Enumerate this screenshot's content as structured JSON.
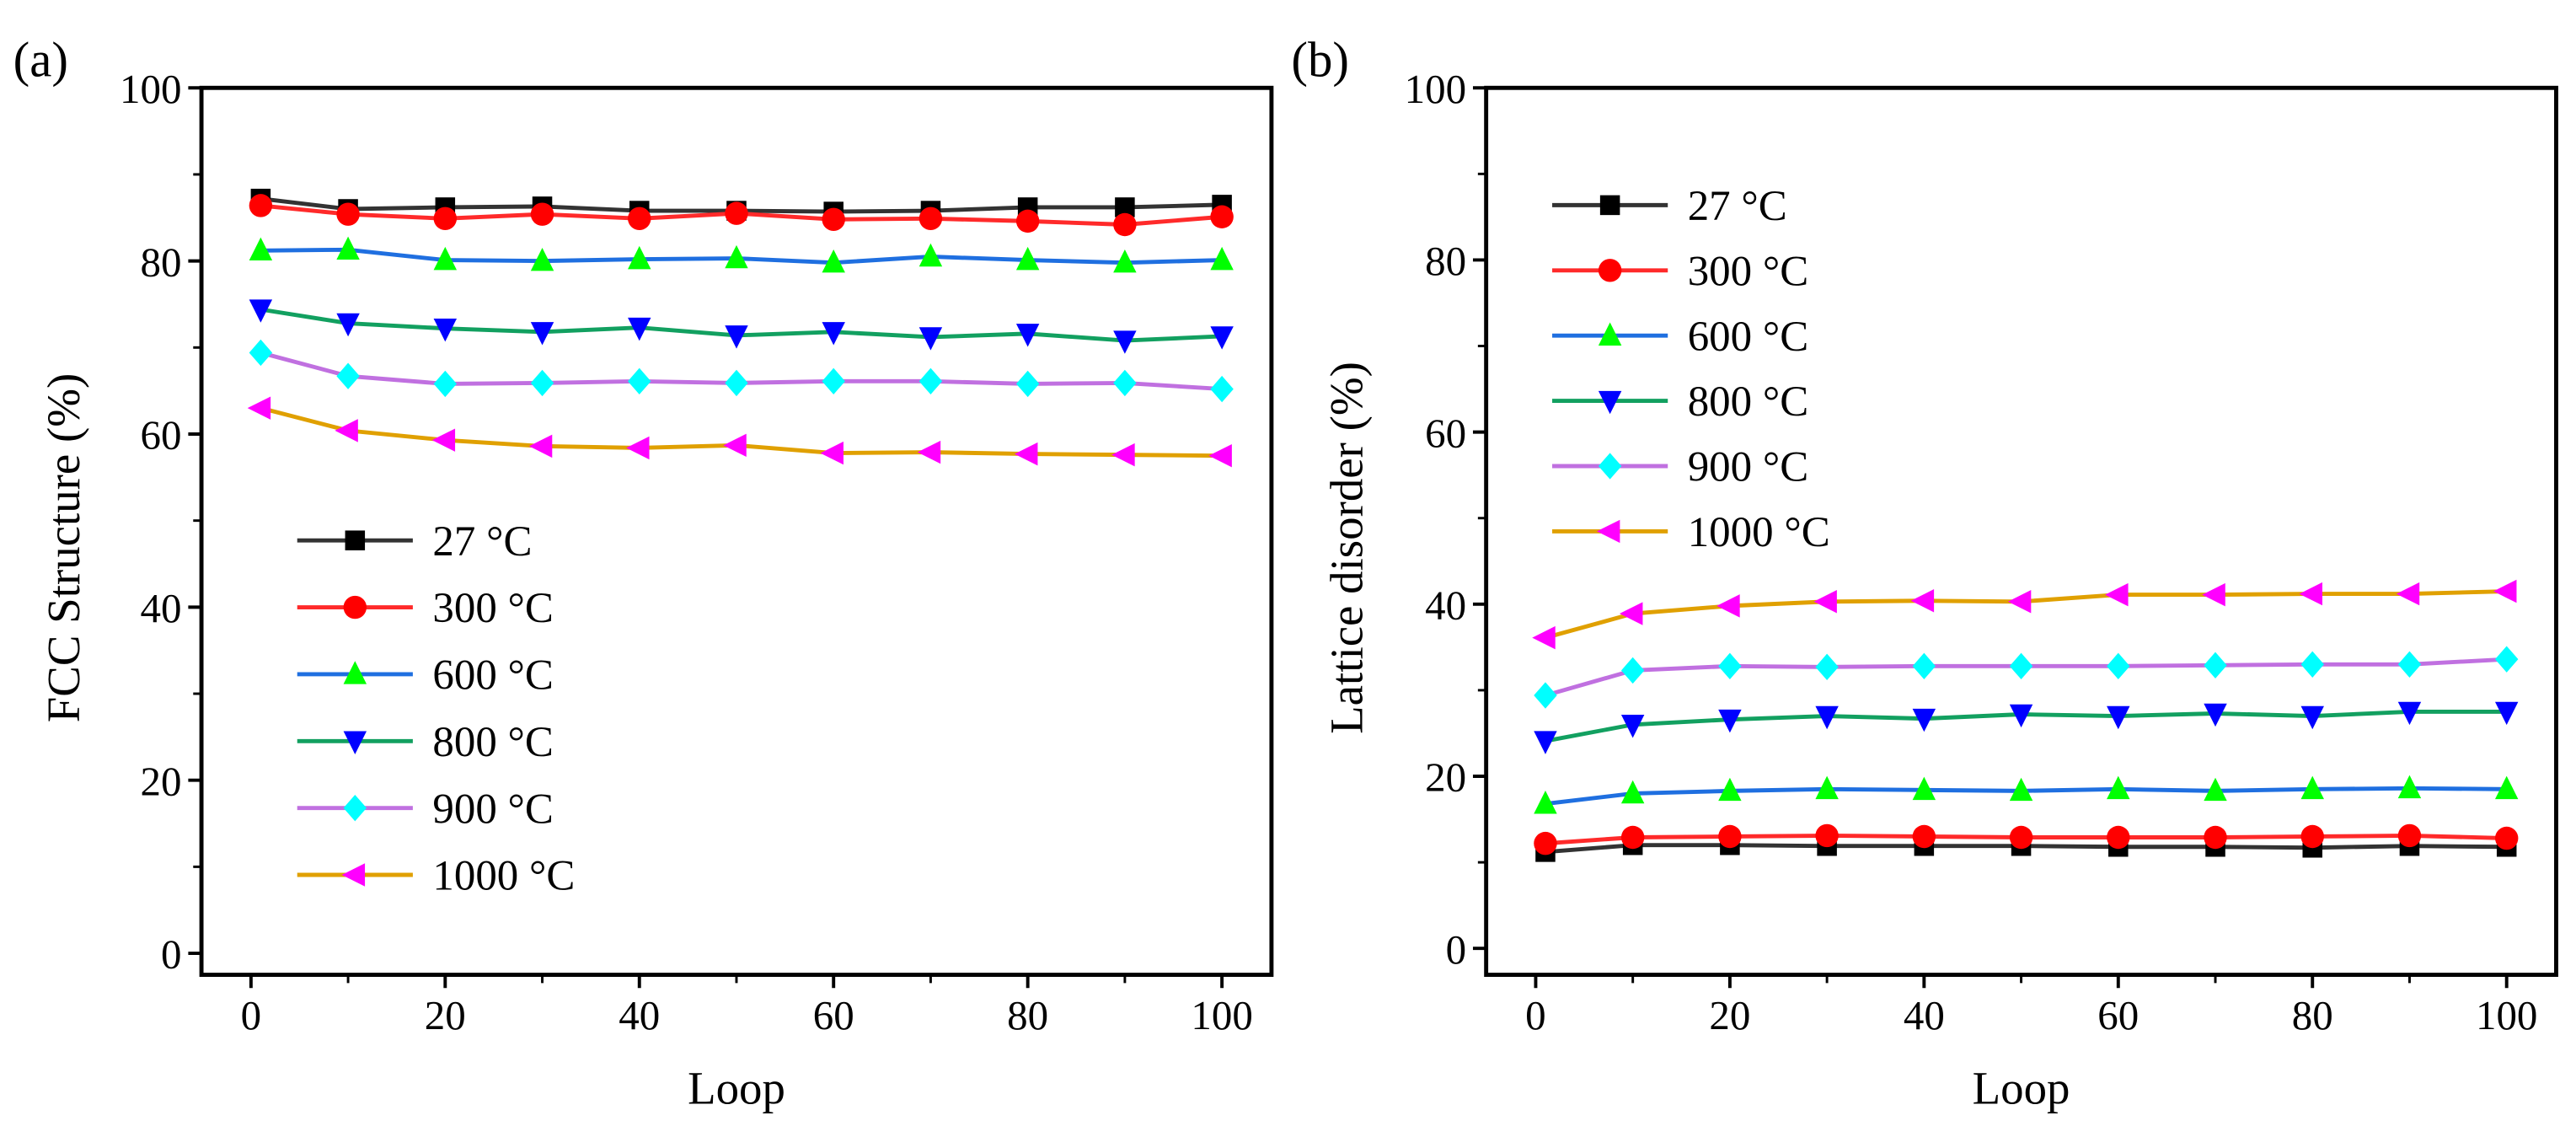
{
  "chart_data": [
    {
      "type": "line",
      "panel_label": "(a)",
      "xlabel": "Loop",
      "ylabel": "FCC Structure (%)",
      "xlim": [
        -4,
        105
      ],
      "ylim": [
        0,
        100
      ],
      "xticks": [
        0,
        20,
        40,
        60,
        80,
        100
      ],
      "yticks": [
        0,
        20,
        40,
        60,
        80,
        100
      ],
      "legend_placement": "lower-left",
      "x": [
        1,
        10,
        20,
        30,
        40,
        50,
        60,
        70,
        80,
        90,
        100
      ],
      "series": [
        {
          "name": "27 °C",
          "line_color": "#333333",
          "marker": "square",
          "marker_color": "#000000",
          "values": [
            87.2,
            86.0,
            86.2,
            86.3,
            85.8,
            85.8,
            85.7,
            85.8,
            86.2,
            86.2,
            86.5
          ]
        },
        {
          "name": "300 °C",
          "line_color": "#ff2a2a",
          "marker": "circle",
          "marker_color": "#ff0000",
          "values": [
            86.4,
            85.4,
            84.9,
            85.4,
            84.9,
            85.5,
            84.8,
            84.9,
            84.6,
            84.2,
            85.1
          ]
        },
        {
          "name": "600 °C",
          "line_color": "#1f6fe0",
          "marker": "triangle-up",
          "marker_color": "#00ff00",
          "values": [
            81.2,
            81.3,
            80.1,
            80.0,
            80.2,
            80.3,
            79.8,
            80.5,
            80.1,
            79.8,
            80.1
          ]
        },
        {
          "name": "800 °C",
          "line_color": "#12a060",
          "marker": "triangle-down",
          "marker_color": "#0000ff",
          "values": [
            74.4,
            72.8,
            72.2,
            71.8,
            72.3,
            71.4,
            71.8,
            71.2,
            71.6,
            70.8,
            71.3
          ]
        },
        {
          "name": "900 °C",
          "line_color": "#c070e0",
          "marker": "diamond",
          "marker_color": "#00ffff",
          "values": [
            69.4,
            66.7,
            65.8,
            65.9,
            66.1,
            65.9,
            66.1,
            66.1,
            65.8,
            65.9,
            65.2
          ]
        },
        {
          "name": "1000 °C",
          "line_color": "#e0a000",
          "marker": "triangle-left",
          "marker_color": "#ff00ff",
          "values": [
            63.0,
            60.4,
            59.3,
            58.6,
            58.4,
            58.7,
            57.8,
            57.9,
            57.7,
            57.6,
            57.5
          ]
        }
      ]
    },
    {
      "type": "line",
      "panel_label": "(b)",
      "xlabel": "Loop",
      "ylabel": "Lattice disorder (%)",
      "xlim": [
        -4,
        105
      ],
      "ylim": [
        0,
        100
      ],
      "xticks": [
        0,
        20,
        40,
        60,
        80,
        100
      ],
      "yticks": [
        0,
        20,
        40,
        60,
        80,
        100
      ],
      "legend_placement": "upper-left",
      "x": [
        1,
        10,
        20,
        30,
        40,
        50,
        60,
        70,
        80,
        90,
        100
      ],
      "series": [
        {
          "name": "27 °C",
          "line_color": "#333333",
          "marker": "square",
          "marker_color": "#000000",
          "values": [
            11.2,
            12.0,
            12.0,
            11.9,
            11.9,
            11.9,
            11.8,
            11.8,
            11.7,
            11.9,
            11.8
          ]
        },
        {
          "name": "300 °C",
          "line_color": "#ff2a2a",
          "marker": "circle",
          "marker_color": "#ff0000",
          "values": [
            12.2,
            12.9,
            13.0,
            13.1,
            13.0,
            12.9,
            12.9,
            12.9,
            13.0,
            13.1,
            12.8
          ]
        },
        {
          "name": "600 °C",
          "line_color": "#1f6fe0",
          "marker": "triangle-up",
          "marker_color": "#00ff00",
          "values": [
            16.8,
            18.0,
            18.3,
            18.5,
            18.4,
            18.3,
            18.5,
            18.3,
            18.5,
            18.6,
            18.5
          ]
        },
        {
          "name": "800 °C",
          "line_color": "#12a060",
          "marker": "triangle-down",
          "marker_color": "#0000ff",
          "values": [
            24.1,
            26.0,
            26.6,
            27.0,
            26.7,
            27.2,
            27.0,
            27.3,
            27.0,
            27.5,
            27.5
          ]
        },
        {
          "name": "900 °C",
          "line_color": "#c070e0",
          "marker": "diamond",
          "marker_color": "#00ffff",
          "values": [
            29.4,
            32.3,
            32.8,
            32.7,
            32.8,
            32.8,
            32.8,
            32.9,
            33.0,
            33.0,
            33.6
          ]
        },
        {
          "name": "1000 °C",
          "line_color": "#e0a000",
          "marker": "triangle-left",
          "marker_color": "#ff00ff",
          "values": [
            36.1,
            38.9,
            39.8,
            40.3,
            40.4,
            40.3,
            41.1,
            41.1,
            41.2,
            41.2,
            41.5
          ]
        }
      ]
    }
  ]
}
